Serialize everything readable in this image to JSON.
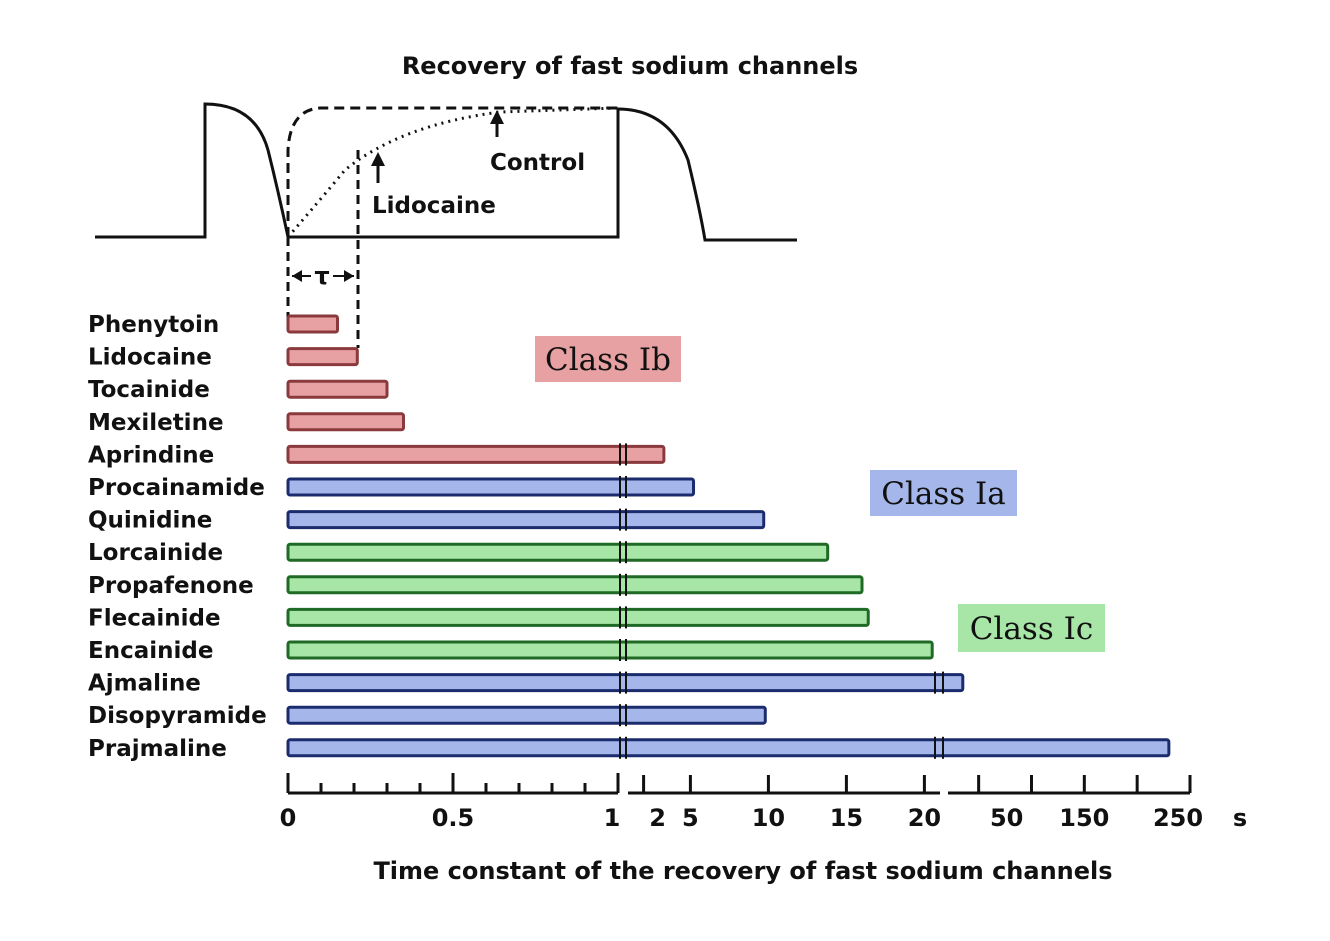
{
  "chart_data": {
    "type": "bar",
    "orientation": "horizontal",
    "title": "Recovery of fast sodium channels",
    "xlabel": "Time constant of the recovery of fast sodium channels",
    "x_unit": "s",
    "x_axis_segments": [
      {
        "ticks": [
          "0",
          "0.5",
          "1"
        ],
        "range": [
          0,
          1
        ]
      },
      {
        "ticks": [
          "2",
          "5",
          "10",
          "15",
          "20"
        ],
        "range": [
          1,
          21
        ]
      },
      {
        "ticks": [
          "50",
          "150",
          "250"
        ],
        "range": [
          21,
          250
        ]
      }
    ],
    "x_tick_labels": [
      "0",
      "0.5",
      "1",
      "2",
      "5",
      "10",
      "15",
      "20",
      "50",
      "150",
      "250",
      "s"
    ],
    "categories": [
      "Phenytoin",
      "Lidocaine",
      "Tocainide",
      "Mexiletine",
      "Aprindine",
      "Procainamide",
      "Quinidine",
      "Lorcainide",
      "Propafenone",
      "Flecainide",
      "Encainide",
      "Ajmaline",
      "Disopyramide",
      "Prajmaline"
    ],
    "values": [
      0.15,
      0.21,
      0.3,
      0.35,
      3.3,
      5.2,
      9.7,
      13.8,
      16,
      16.4,
      20.5,
      35,
      9.8,
      230
    ],
    "classes": [
      "Ib",
      "Ib",
      "Ib",
      "Ib",
      "Ib",
      "Ia",
      "Ia",
      "Ic",
      "Ic",
      "Ic",
      "Ic",
      "Ia",
      "Ia",
      "Ia"
    ],
    "legend": [
      {
        "label": "Class Ib",
        "class": "Ib",
        "color": "#e8a1a3"
      },
      {
        "label": "Class Ia",
        "class": "Ia",
        "color": "#a5b7ea"
      },
      {
        "label": "Class Ic",
        "class": "Ic",
        "color": "#a8e6a7"
      }
    ],
    "inset": {
      "annotations": [
        "Control",
        "Lidocaine"
      ],
      "tau_label": "τ"
    }
  }
}
